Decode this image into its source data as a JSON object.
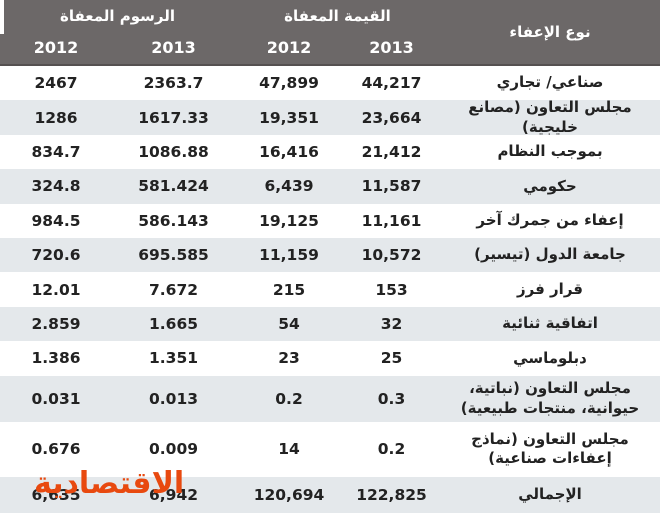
{
  "chart_data": {
    "type": "table",
    "title": "",
    "columns": [
      "نوع الإعفاء",
      "القيمة المعفاة 2013",
      "القيمة المعفاة 2012",
      "الرسوم المعفاة 2013",
      "الرسوم المعفاة 2012"
    ],
    "header": {
      "type_col": "نوع الإعفاء",
      "groups": [
        {
          "label": "القيمة المعفاة",
          "years": [
            "2013",
            "2012"
          ]
        },
        {
          "label": "الرسوم المعفاة",
          "years": [
            "2013",
            "2012"
          ]
        }
      ]
    },
    "rows": [
      {
        "label": "صناعي/ تجاري",
        "value_2013": "44,217",
        "value_2012": "47,899",
        "fees_2013": "2363.7",
        "fees_2012": "2467"
      },
      {
        "label": "مجلس التعاون (مصانع خليجية)",
        "value_2013": "23,664",
        "value_2012": "19,351",
        "fees_2013": "1617.33",
        "fees_2012": "1286"
      },
      {
        "label": "بموجب النظام",
        "value_2013": "21,412",
        "value_2012": "16,416",
        "fees_2013": "1086.88",
        "fees_2012": "834.7"
      },
      {
        "label": "حكومي",
        "value_2013": "11,587",
        "value_2012": "6,439",
        "fees_2013": "581.424",
        "fees_2012": "324.8"
      },
      {
        "label": "إعفاء من جمرك آخر",
        "value_2013": "11,161",
        "value_2012": "19,125",
        "fees_2013": "586.143",
        "fees_2012": "984.5"
      },
      {
        "label": "جامعة الدول (تيسير)",
        "value_2013": "10,572",
        "value_2012": "11,159",
        "fees_2013": "695.585",
        "fees_2012": "720.6"
      },
      {
        "label": "قرار فرز",
        "value_2013": "153",
        "value_2012": "215",
        "fees_2013": "7.672",
        "fees_2012": "12.01"
      },
      {
        "label": "اتفاقية ثنائية",
        "value_2013": "32",
        "value_2012": "54",
        "fees_2013": "1.665",
        "fees_2012": "2.859"
      },
      {
        "label": "دبلوماسي",
        "value_2013": "25",
        "value_2012": "23",
        "fees_2013": "1.351",
        "fees_2012": "1.386"
      },
      {
        "label": "مجلس التعاون (نباتية، حيوانية، منتجات طبيعية)",
        "value_2013": "0.3",
        "value_2012": "0.2",
        "fees_2013": "0.013",
        "fees_2012": "0.031"
      },
      {
        "label": "مجلس التعاون (نماذج إعفاءات صناعية)",
        "value_2013": "0.2",
        "value_2012": "14",
        "fees_2013": "0.009",
        "fees_2012": "0.676"
      }
    ],
    "total": {
      "label": "الإجمالي",
      "value_2013": "122,825",
      "value_2012": "120,694",
      "fees_2013": "6,942",
      "fees_2012": "6,635"
    },
    "layout": {
      "grid": false,
      "alt_row_shading": true
    }
  },
  "watermark": {
    "text": "الاقتصادية",
    "color": "#e8490f"
  },
  "colors": {
    "header_bg": "#6c6868",
    "header_text": "#ffffff",
    "alt_row_bg": "#e4e8eb",
    "body_text": "#222222",
    "logo_color": "#e8490f"
  }
}
